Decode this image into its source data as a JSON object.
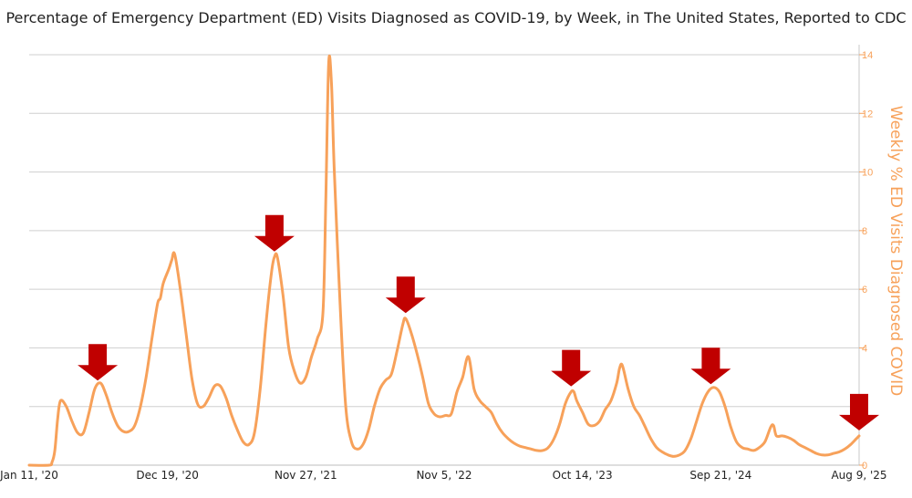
{
  "chart_data": {
    "type": "line",
    "title": "Percentage of Emergency Department (ED) Visits Diagnosed as COVID-19, by Week, in The United States, Reported to CDC",
    "xlabel": "",
    "ylabel": "Weekly % ED Visits Diagnosed COVID",
    "ylim": [
      0,
      14
    ],
    "y_ticks": [
      "0",
      "2",
      "4",
      "6",
      "8",
      "10",
      "12",
      "14"
    ],
    "y_axis_position": "right",
    "grid": true,
    "x_tick_labels": [
      "Jan 11, '20",
      "Dec 19, '20",
      "Nov 27, '21",
      "Nov 5, '22",
      "Oct 14, '23",
      "Sep 21, '24",
      "Aug 9, '25"
    ],
    "x_range": [
      "2020-01-11",
      "2025-08-09"
    ],
    "line_color": "#f7a15a",
    "arrow_color": "#c00000",
    "series": [
      {
        "values": [
          [
            "2020-01-11",
            0.0
          ],
          [
            "2020-02-29",
            0.0
          ],
          [
            "2020-03-07",
            0.1
          ],
          [
            "2020-03-14",
            0.5
          ],
          [
            "2020-03-21",
            1.6
          ],
          [
            "2020-03-28",
            2.2
          ],
          [
            "2020-04-11",
            2.0
          ],
          [
            "2020-04-25",
            1.5
          ],
          [
            "2020-05-09",
            1.1
          ],
          [
            "2020-05-23",
            1.1
          ],
          [
            "2020-06-06",
            1.8
          ],
          [
            "2020-06-20",
            2.6
          ],
          [
            "2020-07-04",
            2.8
          ],
          [
            "2020-07-18",
            2.4
          ],
          [
            "2020-08-01",
            1.8
          ],
          [
            "2020-08-15",
            1.35
          ],
          [
            "2020-08-29",
            1.15
          ],
          [
            "2020-09-12",
            1.15
          ],
          [
            "2020-09-26",
            1.35
          ],
          [
            "2020-10-10",
            2.0
          ],
          [
            "2020-10-24",
            3.0
          ],
          [
            "2020-11-07",
            4.3
          ],
          [
            "2020-11-21",
            5.5
          ],
          [
            "2020-11-28",
            5.7
          ],
          [
            "2020-12-05",
            6.2
          ],
          [
            "2020-12-19",
            6.7
          ],
          [
            "2020-12-26",
            7.0
          ],
          [
            "2021-01-02",
            7.2
          ],
          [
            "2021-01-16",
            6.0
          ],
          [
            "2021-01-30",
            4.5
          ],
          [
            "2021-02-13",
            3.0
          ],
          [
            "2021-02-27",
            2.1
          ],
          [
            "2021-03-13",
            2.0
          ],
          [
            "2021-03-27",
            2.3
          ],
          [
            "2021-04-10",
            2.7
          ],
          [
            "2021-04-24",
            2.7
          ],
          [
            "2021-05-08",
            2.3
          ],
          [
            "2021-05-22",
            1.7
          ],
          [
            "2021-06-05",
            1.2
          ],
          [
            "2021-06-19",
            0.8
          ],
          [
            "2021-07-03",
            0.7
          ],
          [
            "2021-07-17",
            1.1
          ],
          [
            "2021-07-31",
            2.6
          ],
          [
            "2021-08-14",
            4.8
          ],
          [
            "2021-08-28",
            6.6
          ],
          [
            "2021-09-04",
            7.1
          ],
          [
            "2021-09-11",
            7.1
          ],
          [
            "2021-09-25",
            5.8
          ],
          [
            "2021-10-09",
            4.0
          ],
          [
            "2021-10-23",
            3.2
          ],
          [
            "2021-11-06",
            2.8
          ],
          [
            "2021-11-20",
            3.0
          ],
          [
            "2021-12-04",
            3.7
          ],
          [
            "2021-12-18",
            4.3
          ],
          [
            "2022-01-01",
            5.2
          ],
          [
            "2022-01-08",
            9.0
          ],
          [
            "2022-01-15",
            13.7
          ],
          [
            "2022-01-22",
            13.0
          ],
          [
            "2022-01-29",
            10.0
          ],
          [
            "2022-02-12",
            5.5
          ],
          [
            "2022-02-26",
            2.0
          ],
          [
            "2022-03-12",
            0.8
          ],
          [
            "2022-03-26",
            0.55
          ],
          [
            "2022-04-09",
            0.7
          ],
          [
            "2022-04-23",
            1.2
          ],
          [
            "2022-05-07",
            2.0
          ],
          [
            "2022-05-21",
            2.6
          ],
          [
            "2022-06-04",
            2.9
          ],
          [
            "2022-06-18",
            3.1
          ],
          [
            "2022-07-02",
            3.9
          ],
          [
            "2022-07-16",
            4.8
          ],
          [
            "2022-07-23",
            5.0
          ],
          [
            "2022-08-06",
            4.5
          ],
          [
            "2022-08-20",
            3.8
          ],
          [
            "2022-09-03",
            3.0
          ],
          [
            "2022-09-17",
            2.1
          ],
          [
            "2022-10-01",
            1.75
          ],
          [
            "2022-10-15",
            1.65
          ],
          [
            "2022-10-29",
            1.7
          ],
          [
            "2022-11-12",
            1.75
          ],
          [
            "2022-11-26",
            2.5
          ],
          [
            "2022-12-10",
            3.0
          ],
          [
            "2022-12-24",
            3.7
          ],
          [
            "2023-01-07",
            2.6
          ],
          [
            "2023-01-21",
            2.2
          ],
          [
            "2023-02-04",
            2.0
          ],
          [
            "2023-02-18",
            1.8
          ],
          [
            "2023-03-04",
            1.4
          ],
          [
            "2023-03-18",
            1.1
          ],
          [
            "2023-04-01",
            0.9
          ],
          [
            "2023-04-15",
            0.75
          ],
          [
            "2023-04-29",
            0.65
          ],
          [
            "2023-05-13",
            0.6
          ],
          [
            "2023-05-27",
            0.55
          ],
          [
            "2023-06-10",
            0.5
          ],
          [
            "2023-06-24",
            0.5
          ],
          [
            "2023-07-08",
            0.6
          ],
          [
            "2023-07-22",
            0.9
          ],
          [
            "2023-08-05",
            1.4
          ],
          [
            "2023-08-19",
            2.1
          ],
          [
            "2023-09-02",
            2.5
          ],
          [
            "2023-09-09",
            2.5
          ],
          [
            "2023-09-16",
            2.2
          ],
          [
            "2023-09-30",
            1.8
          ],
          [
            "2023-10-14",
            1.4
          ],
          [
            "2023-10-28",
            1.35
          ],
          [
            "2023-11-11",
            1.5
          ],
          [
            "2023-11-25",
            1.9
          ],
          [
            "2023-12-09",
            2.2
          ],
          [
            "2023-12-23",
            2.8
          ],
          [
            "2023-12-30",
            3.3
          ],
          [
            "2024-01-06",
            3.4
          ],
          [
            "2024-01-20",
            2.6
          ],
          [
            "2024-02-03",
            2.0
          ],
          [
            "2024-02-17",
            1.7
          ],
          [
            "2024-03-02",
            1.3
          ],
          [
            "2024-03-16",
            0.9
          ],
          [
            "2024-03-30",
            0.6
          ],
          [
            "2024-04-13",
            0.45
          ],
          [
            "2024-04-27",
            0.35
          ],
          [
            "2024-05-11",
            0.3
          ],
          [
            "2024-05-25",
            0.35
          ],
          [
            "2024-06-08",
            0.5
          ],
          [
            "2024-06-22",
            0.9
          ],
          [
            "2024-07-06",
            1.5
          ],
          [
            "2024-07-20",
            2.1
          ],
          [
            "2024-08-03",
            2.5
          ],
          [
            "2024-08-17",
            2.65
          ],
          [
            "2024-08-31",
            2.5
          ],
          [
            "2024-09-14",
            2.0
          ],
          [
            "2024-09-28",
            1.3
          ],
          [
            "2024-10-12",
            0.8
          ],
          [
            "2024-10-26",
            0.6
          ],
          [
            "2024-11-09",
            0.55
          ],
          [
            "2024-11-23",
            0.5
          ],
          [
            "2024-12-07",
            0.6
          ],
          [
            "2024-12-21",
            0.8
          ],
          [
            "2025-01-04",
            1.3
          ],
          [
            "2025-01-11",
            1.35
          ],
          [
            "2025-01-18",
            1.0
          ],
          [
            "2025-02-01",
            1.0
          ],
          [
            "2025-02-15",
            0.95
          ],
          [
            "2025-03-01",
            0.85
          ],
          [
            "2025-03-15",
            0.7
          ],
          [
            "2025-03-29",
            0.6
          ],
          [
            "2025-04-12",
            0.5
          ],
          [
            "2025-04-26",
            0.4
          ],
          [
            "2025-05-10",
            0.35
          ],
          [
            "2025-05-24",
            0.35
          ],
          [
            "2025-06-07",
            0.4
          ],
          [
            "2025-06-21",
            0.45
          ],
          [
            "2025-07-05",
            0.55
          ],
          [
            "2025-07-19",
            0.7
          ],
          [
            "2025-08-02",
            0.9
          ],
          [
            "2025-08-09",
            1.0
          ]
        ]
      }
    ],
    "arrow_markers": [
      "2020-06-27",
      "2021-09-04",
      "2022-07-23",
      "2023-09-02",
      "2024-08-10",
      "2025-08-09"
    ]
  }
}
